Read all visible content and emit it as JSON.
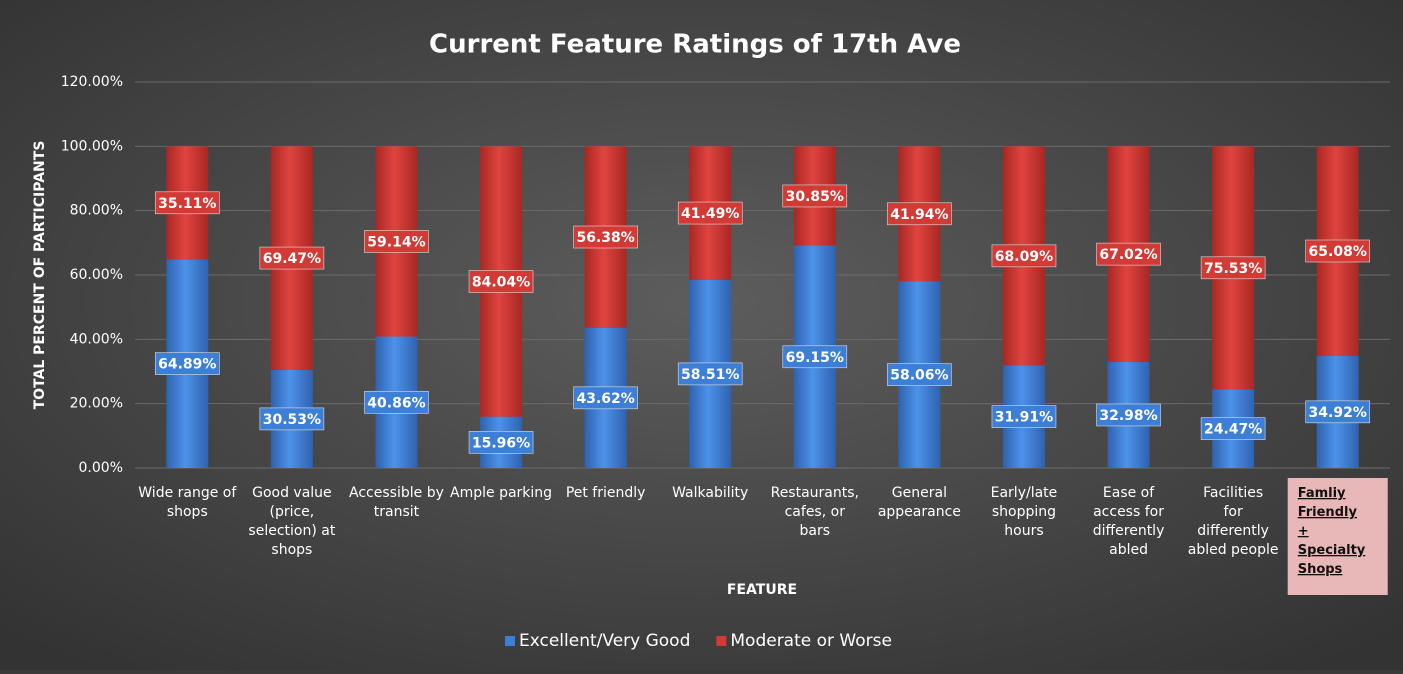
{
  "chart_data": {
    "type": "stacked_bar",
    "title": "Current Feature Ratings of 17th Ave",
    "x_label": "FEATURE",
    "y_label": "TOTAL PERCENT OF PARTICIPANTS",
    "categories": [
      "Wide range of shops",
      "Good value (price, selection) at shops",
      "Accessible by transit",
      "Ample parking",
      "Pet friendly",
      "Walkability",
      "Restaurants, cafes, or bars",
      "General appearance",
      "Early/late shopping hours",
      "Ease of access for differently abled",
      "Facilities for differently abled people",
      "Famliy Friendly + Specialty Shops"
    ],
    "series": [
      {
        "name": "Excellent/Very Good",
        "color": "#3d7fd6",
        "values": [
          64.89,
          30.53,
          40.86,
          15.96,
          43.62,
          58.51,
          69.15,
          58.06,
          31.91,
          32.98,
          24.47,
          34.92
        ],
        "value_labels": [
          "64.89%",
          "30.53%",
          "40.86%",
          "15.96%",
          "43.62%",
          "58.51%",
          "69.15%",
          "58.06%",
          "31.91%",
          "32.98%",
          "24.47%",
          "34.92%"
        ]
      },
      {
        "name": "Moderate or Worse",
        "color": "#d23a36",
        "values": [
          35.11,
          69.47,
          59.14,
          84.04,
          56.38,
          41.49,
          30.85,
          41.94,
          68.09,
          67.02,
          75.53,
          65.08
        ],
        "value_labels": [
          "35.11%",
          "69.47%",
          "59.14%",
          "84.04%",
          "56.38%",
          "41.49%",
          "30.85%",
          "41.94%",
          "68.09%",
          "67.02%",
          "75.53%",
          "65.08%"
        ]
      }
    ],
    "ylim": [
      0,
      120
    ],
    "yticks": [
      {
        "value": 0,
        "label": "0.00%"
      },
      {
        "value": 20,
        "label": "20.00%"
      },
      {
        "value": 40,
        "label": "40.00%"
      },
      {
        "value": 60,
        "label": "60.00%"
      },
      {
        "value": 80,
        "label": "80.00%"
      },
      {
        "value": 100,
        "label": "100.00%"
      },
      {
        "value": 120,
        "label": "120.00%"
      }
    ],
    "grid": true,
    "legend": "bottom"
  }
}
